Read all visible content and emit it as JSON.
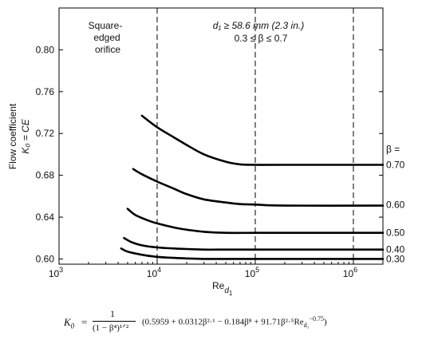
{
  "chart_data": {
    "type": "line",
    "x_scale": "log",
    "xlim": [
      1000,
      2000000
    ],
    "ylim": [
      0.595,
      0.84
    ],
    "x_ticks": [
      {
        "value": 1000,
        "base": "10",
        "exp": "3"
      },
      {
        "value": 10000,
        "base": "10",
        "exp": "4"
      },
      {
        "value": 100000,
        "base": "10",
        "exp": "5"
      },
      {
        "value": 1000000,
        "base": "10",
        "exp": "6"
      }
    ],
    "y_ticks": [
      0.6,
      0.64,
      0.68,
      0.72,
      0.76,
      0.8
    ],
    "y_tick_labels": [
      "0.60",
      "0.64",
      "0.68",
      "0.72",
      "0.76",
      "0.80"
    ],
    "xlabel": {
      "main": "Re",
      "sub": "d",
      "subsub": "1"
    },
    "ylabel": {
      "line1": "Flow coefficient",
      "line2": "K₀ = CE"
    },
    "vlines": [
      {
        "x": 10000,
        "style": "dashed"
      },
      {
        "x": 100000,
        "style": "dashed"
      },
      {
        "x": 1000000,
        "style": "dashed"
      }
    ],
    "annotations": {
      "region_left": [
        "Square-",
        "edged",
        "orifice"
      ],
      "region_right": [
        "d₁ ≥ 58.6 mm (2.3 in.)",
        "0.3 ≤ β ≤ 0.7"
      ],
      "beta_header": "β ="
    },
    "series": [
      {
        "name": "0.70",
        "label_y": 0.69,
        "x": [
          7000,
          10000,
          15000,
          20000,
          30000,
          50000,
          70000,
          100000,
          200000,
          2000000
        ],
        "y": [
          0.737,
          0.726,
          0.716,
          0.709,
          0.7,
          0.693,
          0.6905,
          0.69,
          0.69,
          0.69
        ]
      },
      {
        "name": "0.60",
        "label_y": 0.652,
        "x": [
          5700,
          7000,
          10000,
          15000,
          20000,
          30000,
          50000,
          70000,
          100000,
          200000,
          2000000
        ],
        "y": [
          0.686,
          0.681,
          0.674,
          0.667,
          0.662,
          0.657,
          0.654,
          0.6525,
          0.652,
          0.651,
          0.651
        ]
      },
      {
        "name": "0.50",
        "label_y": 0.625,
        "x": [
          5000,
          6000,
          8000,
          10000,
          15000,
          20000,
          30000,
          50000,
          100000,
          200000,
          2000000
        ],
        "y": [
          0.648,
          0.642,
          0.637,
          0.634,
          0.63,
          0.628,
          0.626,
          0.625,
          0.625,
          0.625,
          0.625
        ]
      },
      {
        "name": "0.40",
        "label_y": 0.609,
        "x": [
          4600,
          5500,
          7000,
          10000,
          15000,
          20000,
          30000,
          50000,
          100000,
          2000000
        ],
        "y": [
          0.62,
          0.616,
          0.613,
          0.611,
          0.61,
          0.6095,
          0.609,
          0.609,
          0.609,
          0.609
        ]
      },
      {
        "name": "0.30",
        "label_y": 0.6,
        "x": [
          4300,
          5000,
          7000,
          10000,
          15000,
          20000,
          30000,
          50000,
          2000000
        ],
        "y": [
          0.61,
          0.607,
          0.604,
          0.602,
          0.601,
          0.6005,
          0.6,
          0.6,
          0.6
        ]
      }
    ]
  },
  "formula": {
    "lhs": "K",
    "lhs_sub": "0",
    "eq": "=",
    "numerator": "1",
    "denominator": "(1 − β⁴)¹ᐟ²",
    "body": "(0.5959 + 0.0312β²·¹ − 0.184β⁸ + 91.71β²·⁵Re",
    "body_sub": "d₁",
    "body_sup": "−0.75",
    "close": ")"
  }
}
